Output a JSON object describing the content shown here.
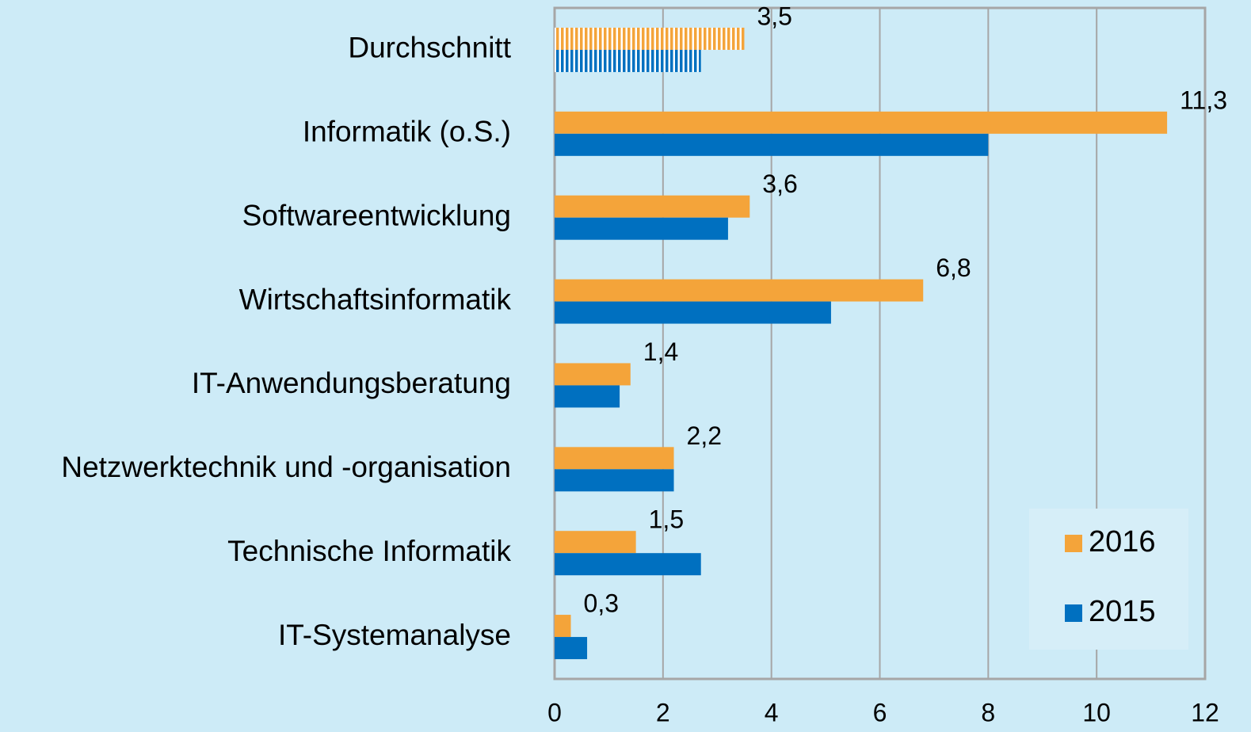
{
  "chart_data": {
    "type": "bar",
    "orientation": "horizontal",
    "categories": [
      "Durchschnitt",
      "Informatik (o.S.)",
      "Softwareentwicklung",
      "Wirtschaftsinformatik",
      "IT-Anwendungsberatung",
      "Netzwerktechnik und -organisation",
      "Technische Informatik",
      "IT-Systemanalyse"
    ],
    "series": [
      {
        "name": "2016",
        "color": "#f4a43a",
        "values": [
          3.5,
          11.3,
          3.6,
          6.8,
          1.4,
          2.2,
          1.5,
          0.3
        ],
        "value_labels": [
          "3,5",
          "11,3",
          "3,6",
          "6,8",
          "1,4",
          "2,2",
          "1,5",
          "0,3"
        ]
      },
      {
        "name": "2015",
        "color": "#0070c0",
        "values": [
          2.7,
          8.0,
          3.2,
          5.1,
          1.2,
          2.2,
          2.7,
          0.6
        ]
      }
    ],
    "xlim": [
      0,
      12
    ],
    "xticks": [
      0,
      2,
      4,
      6,
      8,
      10,
      12
    ],
    "grid": true,
    "legend": "lower right",
    "hatched_index": 0
  }
}
